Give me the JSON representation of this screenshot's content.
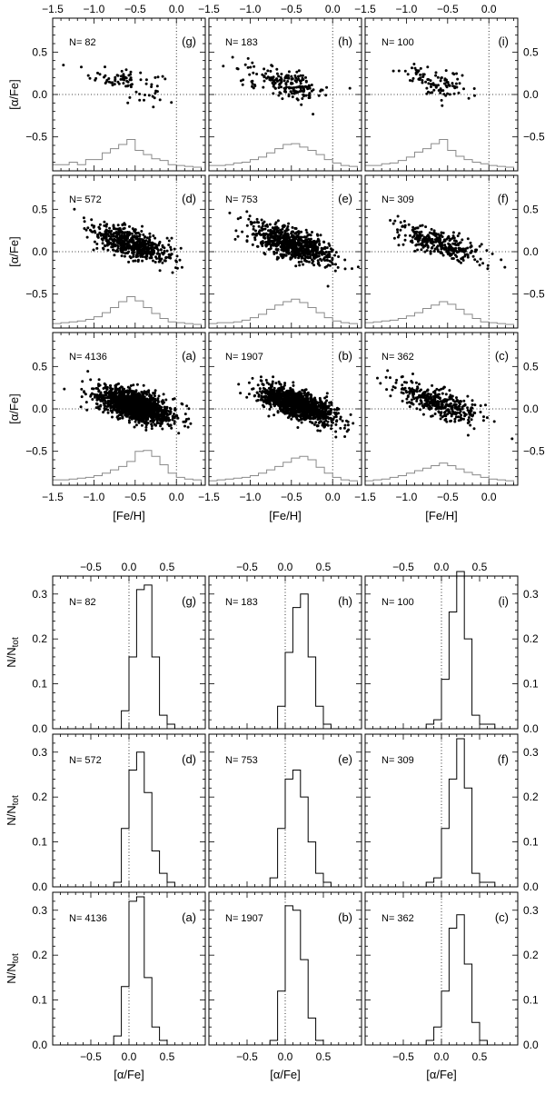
{
  "figure": {
    "top": {
      "xlabel": "[Fe/H]",
      "ylabel": "[α/Fe]",
      "xlim": [
        -1.5,
        0.35
      ],
      "ylim": [
        -0.9,
        0.9
      ],
      "xticks": [
        -1.5,
        -1.0,
        -0.5,
        0.0
      ],
      "xtick_labels": [
        "−1.5",
        "−1.0",
        "−0.5",
        "0.0"
      ],
      "yticks": [
        -0.5,
        0.0,
        0.5
      ],
      "ytick_labels": [
        "−0.5",
        "0.0",
        "0.5"
      ]
    },
    "bottom": {
      "xlabel": "[α/Fe]",
      "ylabel": "N/N",
      "ylabel_sub": "tot",
      "xlim": [
        -1.0,
        1.0
      ],
      "ylim": [
        0,
        0.34
      ],
      "xticks": [
        -0.5,
        0.0,
        0.5
      ],
      "xtick_labels": [
        "−0.5",
        "0.0",
        "0.5"
      ],
      "yticks": [
        0.0,
        0.1,
        0.2,
        0.3
      ],
      "ytick_labels": [
        "0.0",
        "0.1",
        "0.2",
        "0.3"
      ]
    }
  },
  "chart_data": [
    {
      "type": "scatter",
      "description": "[α/Fe] vs [Fe/H] with overlaid [Fe/H] distribution (gray step histogram), 9 panels",
      "xlabel": "[Fe/H]",
      "ylabel": "[α/Fe]",
      "xlim": [
        -1.5,
        0.35
      ],
      "ylim": [
        -0.9,
        0.9
      ],
      "hist_bins_feh": [
        -1.5,
        -1.4,
        -1.3,
        -1.2,
        -1.1,
        -1.0,
        -0.9,
        -0.8,
        -0.7,
        -0.6,
        -0.5,
        -0.4,
        -0.3,
        -0.2,
        -0.1,
        0.0,
        0.1,
        0.2,
        0.3
      ],
      "panels": [
        {
          "id": "g",
          "label": "(g)",
          "n_label": "N=  82",
          "n": 82,
          "hist": [
            0.03,
            0.03,
            0.06,
            0.03,
            0.09,
            0.09,
            0.17,
            0.22,
            0.27,
            0.33,
            0.2,
            0.15,
            0.1,
            0.08,
            0.03,
            0.02,
            0.01,
            0.0
          ]
        },
        {
          "id": "h",
          "label": "(h)",
          "n_label": "N= 183",
          "n": 183,
          "hist": [
            0.02,
            0.02,
            0.03,
            0.05,
            0.06,
            0.09,
            0.12,
            0.17,
            0.22,
            0.27,
            0.28,
            0.24,
            0.2,
            0.15,
            0.09,
            0.05,
            0.02,
            0.01
          ]
        },
        {
          "id": "i",
          "label": "(i)",
          "n_label": "N= 100",
          "n": 100,
          "hist": [
            0.02,
            0.02,
            0.04,
            0.05,
            0.08,
            0.12,
            0.18,
            0.22,
            0.28,
            0.33,
            0.2,
            0.13,
            0.09,
            0.06,
            0.04,
            0.02,
            0.01,
            0.0
          ]
        },
        {
          "id": "d",
          "label": "(d)",
          "n_label": "N= 572",
          "n": 572,
          "hist": [
            0.01,
            0.02,
            0.03,
            0.04,
            0.06,
            0.09,
            0.14,
            0.2,
            0.27,
            0.33,
            0.28,
            0.2,
            0.13,
            0.07,
            0.03,
            0.02,
            0.01,
            0.0
          ]
        },
        {
          "id": "e",
          "label": "(e)",
          "n_label": "N= 753",
          "n": 753,
          "hist": [
            0.01,
            0.02,
            0.02,
            0.03,
            0.05,
            0.08,
            0.12,
            0.18,
            0.23,
            0.27,
            0.3,
            0.26,
            0.2,
            0.14,
            0.08,
            0.04,
            0.02,
            0.01
          ]
        },
        {
          "id": "f",
          "label": "(f)",
          "n_label": "N= 309",
          "n": 309,
          "hist": [
            0.02,
            0.03,
            0.04,
            0.05,
            0.07,
            0.1,
            0.14,
            0.19,
            0.23,
            0.27,
            0.24,
            0.18,
            0.12,
            0.07,
            0.03,
            0.02,
            0.01,
            0.0
          ]
        },
        {
          "id": "a",
          "label": "(a)",
          "n_label": "N= 4136",
          "n": 4136,
          "hist": [
            0.02,
            0.02,
            0.03,
            0.04,
            0.05,
            0.07,
            0.1,
            0.14,
            0.18,
            0.24,
            0.36,
            0.37,
            0.3,
            0.2,
            0.1,
            0.05,
            0.03,
            0.02
          ]
        },
        {
          "id": "b",
          "label": "(b)",
          "n_label": "N= 1907",
          "n": 1907,
          "hist": [
            0.01,
            0.02,
            0.03,
            0.04,
            0.05,
            0.07,
            0.1,
            0.14,
            0.18,
            0.23,
            0.28,
            0.3,
            0.26,
            0.17,
            0.1,
            0.05,
            0.02,
            0.01
          ]
        },
        {
          "id": "c",
          "label": "(c)",
          "n_label": "N= 362",
          "n": 362,
          "hist": [
            0.01,
            0.02,
            0.03,
            0.05,
            0.07,
            0.1,
            0.13,
            0.16,
            0.19,
            0.22,
            0.19,
            0.15,
            0.11,
            0.08,
            0.05,
            0.03,
            0.02,
            0.01
          ]
        }
      ]
    },
    {
      "type": "bar",
      "description": "Normalized [α/Fe] distributions (black step histograms), 9 panels",
      "xlabel": "[α/Fe]",
      "ylabel": "N/N_tot",
      "xlim": [
        -1.0,
        1.0
      ],
      "ylim": [
        0,
        0.34
      ],
      "bins": [
        -0.2,
        -0.1,
        0.0,
        0.1,
        0.2,
        0.3,
        0.4,
        0.5,
        0.6,
        0.7
      ],
      "panels": [
        {
          "id": "g",
          "label": "(g)",
          "n_label": "N=  82",
          "values": [
            0.0,
            0.04,
            0.16,
            0.31,
            0.32,
            0.16,
            0.03,
            0.01,
            0.0
          ]
        },
        {
          "id": "h",
          "label": "(h)",
          "n_label": "N= 183",
          "values": [
            0.0,
            0.05,
            0.17,
            0.27,
            0.3,
            0.16,
            0.05,
            0.01,
            0.0
          ]
        },
        {
          "id": "i",
          "label": "(i)",
          "n_label": "N= 100",
          "values": [
            0.01,
            0.02,
            0.11,
            0.26,
            0.35,
            0.2,
            0.03,
            0.01,
            0.01
          ]
        },
        {
          "id": "d",
          "label": "(d)",
          "n_label": "N= 572",
          "values": [
            0.01,
            0.13,
            0.26,
            0.3,
            0.21,
            0.08,
            0.03,
            0.01,
            0.0
          ]
        },
        {
          "id": "e",
          "label": "(e)",
          "n_label": "N= 753",
          "values": [
            0.02,
            0.13,
            0.24,
            0.26,
            0.2,
            0.1,
            0.03,
            0.01,
            0.0
          ]
        },
        {
          "id": "f",
          "label": "(f)",
          "n_label": "N= 309",
          "values": [
            0.01,
            0.02,
            0.13,
            0.24,
            0.33,
            0.22,
            0.03,
            0.01,
            0.01
          ]
        },
        {
          "id": "a",
          "label": "(a)",
          "n_label": "N= 4136",
          "values": [
            0.02,
            0.13,
            0.32,
            0.33,
            0.15,
            0.04,
            0.01,
            0.0,
            0.0
          ]
        },
        {
          "id": "b",
          "label": "(b)",
          "n_label": "N= 1907",
          "values": [
            0.01,
            0.12,
            0.31,
            0.3,
            0.19,
            0.06,
            0.01,
            0.0,
            0.0
          ]
        },
        {
          "id": "c",
          "label": "(c)",
          "n_label": "N= 362",
          "values": [
            0.01,
            0.04,
            0.12,
            0.26,
            0.29,
            0.18,
            0.05,
            0.01,
            0.0
          ]
        }
      ]
    }
  ]
}
